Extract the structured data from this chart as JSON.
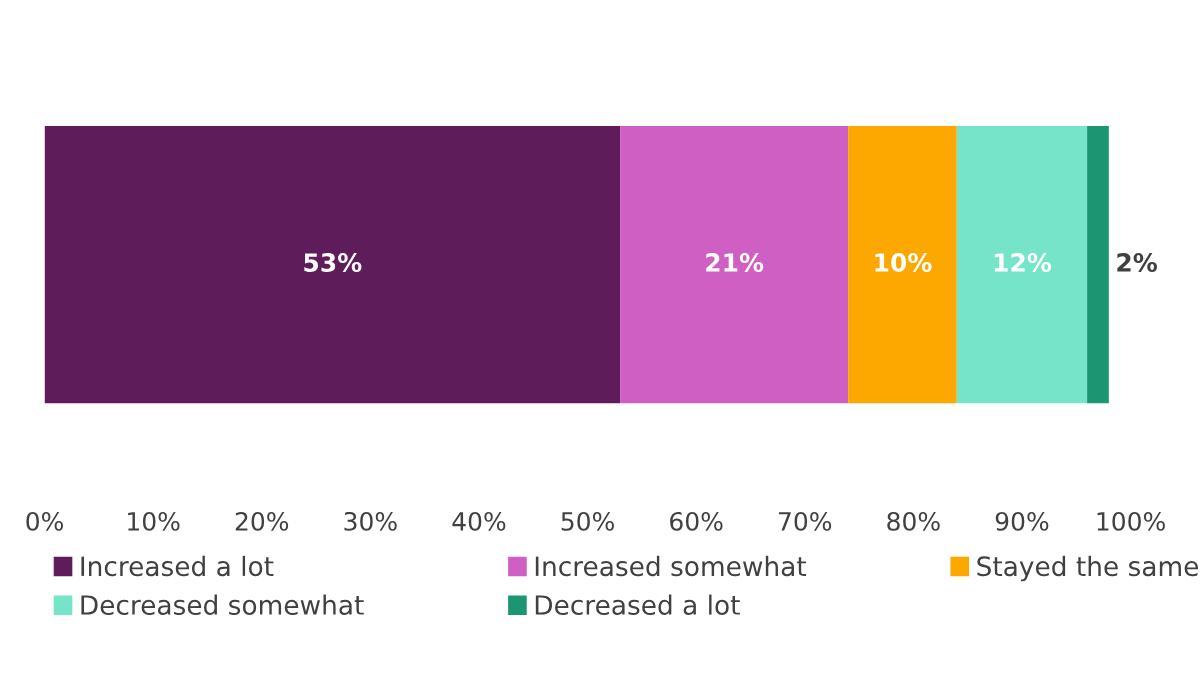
{
  "chart_data": {
    "type": "bar",
    "orientation": "horizontal",
    "stacked": true,
    "categories": [
      null
    ],
    "series": [
      {
        "name": "Increased a lot",
        "color": "#5e1c5b",
        "values": [
          53
        ],
        "value_labels": [
          "53%"
        ]
      },
      {
        "name": "Increased somewhat",
        "color": "#cf5fc3",
        "values": [
          21
        ],
        "value_labels": [
          "21%"
        ]
      },
      {
        "name": "Stayed the same",
        "color": "#fca800",
        "values": [
          10
        ],
        "value_labels": [
          "10%"
        ]
      },
      {
        "name": "Decreased somewhat",
        "color": "#76e4c9",
        "values": [
          12
        ],
        "value_labels": [
          "12%"
        ]
      },
      {
        "name": "Decreased a lot",
        "color": "#1c9672",
        "values": [
          2
        ],
        "value_labels": [
          "2%"
        ]
      }
    ],
    "xlim": [
      0,
      100
    ],
    "xticks": [
      {
        "value": 0,
        "label": "0%"
      },
      {
        "value": 10,
        "label": "10%"
      },
      {
        "value": 20,
        "label": "20%"
      },
      {
        "value": 30,
        "label": "30%"
      },
      {
        "value": 40,
        "label": "40%"
      },
      {
        "value": 50,
        "label": "50%"
      },
      {
        "value": 60,
        "label": "60%"
      },
      {
        "value": 70,
        "label": "70%"
      },
      {
        "value": 80,
        "label": "80%"
      },
      {
        "value": 90,
        "label": "90%"
      },
      {
        "value": 100,
        "label": "100%"
      }
    ],
    "grid": false,
    "legend": "bottom"
  }
}
